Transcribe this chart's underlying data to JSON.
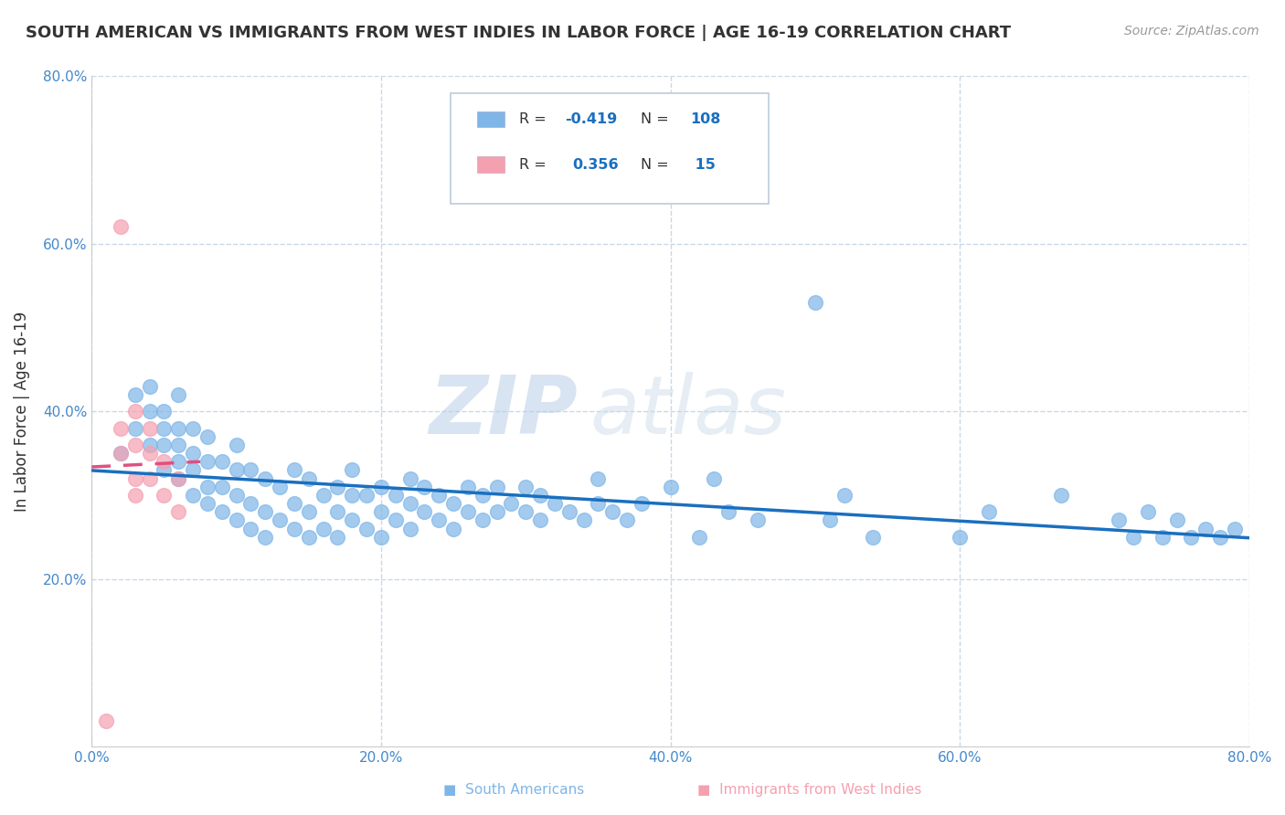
{
  "title": "SOUTH AMERICAN VS IMMIGRANTS FROM WEST INDIES IN LABOR FORCE | AGE 16-19 CORRELATION CHART",
  "source": "Source: ZipAtlas.com",
  "ylabel": "In Labor Force | Age 16-19",
  "xlim": [
    0.0,
    0.8
  ],
  "ylim": [
    0.0,
    0.8
  ],
  "xtick_labels": [
    "0.0%",
    "20.0%",
    "40.0%",
    "60.0%",
    "80.0%"
  ],
  "xtick_vals": [
    0.0,
    0.2,
    0.4,
    0.6,
    0.8
  ],
  "ytick_labels": [
    "20.0%",
    "40.0%",
    "60.0%",
    "80.0%"
  ],
  "ytick_vals": [
    0.2,
    0.4,
    0.6,
    0.8
  ],
  "blue_R": -0.419,
  "blue_N": 108,
  "pink_R": 0.356,
  "pink_N": 15,
  "blue_color": "#7EB6E8",
  "pink_color": "#F4A0B0",
  "blue_line_color": "#1A6FBF",
  "pink_line_color": "#E05080",
  "watermark_zip": "ZIP",
  "watermark_atlas": "atlas",
  "background_color": "#FFFFFF",
  "grid_color": "#C8D8E8",
  "blue_scatter_x": [
    0.02,
    0.03,
    0.03,
    0.04,
    0.04,
    0.04,
    0.05,
    0.05,
    0.05,
    0.05,
    0.06,
    0.06,
    0.06,
    0.06,
    0.06,
    0.07,
    0.07,
    0.07,
    0.07,
    0.08,
    0.08,
    0.08,
    0.08,
    0.09,
    0.09,
    0.09,
    0.1,
    0.1,
    0.1,
    0.1,
    0.11,
    0.11,
    0.11,
    0.12,
    0.12,
    0.12,
    0.13,
    0.13,
    0.14,
    0.14,
    0.14,
    0.15,
    0.15,
    0.15,
    0.16,
    0.16,
    0.17,
    0.17,
    0.17,
    0.18,
    0.18,
    0.18,
    0.19,
    0.19,
    0.2,
    0.2,
    0.2,
    0.21,
    0.21,
    0.22,
    0.22,
    0.22,
    0.23,
    0.23,
    0.24,
    0.24,
    0.25,
    0.25,
    0.26,
    0.26,
    0.27,
    0.27,
    0.28,
    0.28,
    0.29,
    0.3,
    0.3,
    0.31,
    0.31,
    0.32,
    0.33,
    0.34,
    0.35,
    0.35,
    0.36,
    0.37,
    0.38,
    0.4,
    0.42,
    0.43,
    0.44,
    0.46,
    0.5,
    0.51,
    0.52,
    0.54,
    0.6,
    0.62,
    0.67,
    0.71,
    0.72,
    0.73,
    0.74,
    0.75,
    0.76,
    0.77,
    0.78,
    0.79
  ],
  "blue_scatter_y": [
    0.35,
    0.38,
    0.42,
    0.36,
    0.4,
    0.43,
    0.33,
    0.36,
    0.38,
    0.4,
    0.32,
    0.34,
    0.36,
    0.38,
    0.42,
    0.3,
    0.33,
    0.35,
    0.38,
    0.29,
    0.31,
    0.34,
    0.37,
    0.28,
    0.31,
    0.34,
    0.27,
    0.3,
    0.33,
    0.36,
    0.26,
    0.29,
    0.33,
    0.25,
    0.28,
    0.32,
    0.27,
    0.31,
    0.26,
    0.29,
    0.33,
    0.25,
    0.28,
    0.32,
    0.26,
    0.3,
    0.25,
    0.28,
    0.31,
    0.27,
    0.3,
    0.33,
    0.26,
    0.3,
    0.25,
    0.28,
    0.31,
    0.27,
    0.3,
    0.26,
    0.29,
    0.32,
    0.28,
    0.31,
    0.27,
    0.3,
    0.26,
    0.29,
    0.28,
    0.31,
    0.27,
    0.3,
    0.28,
    0.31,
    0.29,
    0.28,
    0.31,
    0.27,
    0.3,
    0.29,
    0.28,
    0.27,
    0.29,
    0.32,
    0.28,
    0.27,
    0.29,
    0.31,
    0.25,
    0.32,
    0.28,
    0.27,
    0.53,
    0.27,
    0.3,
    0.25,
    0.25,
    0.28,
    0.3,
    0.27,
    0.25,
    0.28,
    0.25,
    0.27,
    0.25,
    0.26,
    0.25,
    0.26
  ],
  "pink_scatter_x": [
    0.01,
    0.02,
    0.02,
    0.02,
    0.03,
    0.03,
    0.03,
    0.03,
    0.04,
    0.04,
    0.04,
    0.05,
    0.05,
    0.06,
    0.06
  ],
  "pink_scatter_y": [
    0.03,
    0.62,
    0.35,
    0.38,
    0.3,
    0.32,
    0.36,
    0.4,
    0.32,
    0.35,
    0.38,
    0.3,
    0.34,
    0.28,
    0.32
  ]
}
